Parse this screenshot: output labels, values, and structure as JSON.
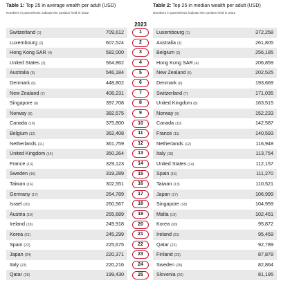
{
  "left_table": {
    "title_bold": "Table 1:",
    "title_rest": " Top 25 in average wealth per adult (USD)",
    "subtitle": "Numbers in parenthesis indicate the position held in 2022",
    "rows": [
      {
        "name": "Switzerland",
        "pos": "(1)",
        "value": "709,612"
      },
      {
        "name": "Luxembourg",
        "pos": "(2)",
        "value": "607,524"
      },
      {
        "name": "Hong Kong SAR",
        "pos": "(4)",
        "value": "582,000"
      },
      {
        "name": "United States",
        "pos": "(3)",
        "value": "564,862"
      },
      {
        "name": "Australia",
        "pos": "(5)",
        "value": "546,184"
      },
      {
        "name": "Denmark",
        "pos": "(6)",
        "value": "448,802"
      },
      {
        "name": "New Zealand",
        "pos": "(7)",
        "value": "408,231"
      },
      {
        "name": "Singapore",
        "pos": "(9)",
        "value": "397,708"
      },
      {
        "name": "Norway",
        "pos": "(8)",
        "value": "382,575"
      },
      {
        "name": "Canada",
        "pos": "(10)",
        "value": "375,800"
      },
      {
        "name": "Belgium",
        "pos": "(12)",
        "value": "362,408"
      },
      {
        "name": "Netherlands",
        "pos": "(11)",
        "value": "361,759"
      },
      {
        "name": "United Kingdom",
        "pos": "(14)",
        "value": "350,264"
      },
      {
        "name": "France",
        "pos": "(13)",
        "value": "329,123"
      },
      {
        "name": "Sweden",
        "pos": "(15)",
        "value": "319,289"
      },
      {
        "name": "Taiwan",
        "pos": "(16)",
        "value": "302,551"
      },
      {
        "name": "Germany",
        "pos": "(17)",
        "value": "264,789"
      },
      {
        "name": "Israel",
        "pos": "(20)",
        "value": "260,567"
      },
      {
        "name": "Austria",
        "pos": "(19)",
        "value": "255,689"
      },
      {
        "name": "Ireland",
        "pos": "(18)",
        "value": "249,918"
      },
      {
        "name": "Korea",
        "pos": "(21)",
        "value": "245,299"
      },
      {
        "name": "Spain",
        "pos": "(22)",
        "value": "225,675"
      },
      {
        "name": "Japan",
        "pos": "(24)",
        "value": "220,371"
      },
      {
        "name": "Italy",
        "pos": "(23)",
        "value": "220,216"
      },
      {
        "name": "Qatar",
        "pos": "(26)",
        "value": "199,430"
      }
    ]
  },
  "ranks": {
    "year": "2023",
    "items": [
      "1",
      "2",
      "3",
      "4",
      "5",
      "6",
      "7",
      "8",
      "9",
      "10",
      "11",
      "12",
      "13",
      "14",
      "15",
      "16",
      "17",
      "18",
      "19",
      "20",
      "21",
      "22",
      "23",
      "24",
      "25"
    ]
  },
  "right_table": {
    "title_bold": "Table 2:",
    "title_rest": " Top 25 in median wealth per adult (USD)",
    "subtitle": "Numbers in parenthesis indicate the position held in 2022",
    "rows": [
      {
        "name": "Luxembourg",
        "pos": "(1)",
        "value": "372,258"
      },
      {
        "name": "Australia",
        "pos": "(3)",
        "value": "261,805"
      },
      {
        "name": "Belgium",
        "pos": "(2)",
        "value": "256,185"
      },
      {
        "name": "Hong Kong SAR",
        "pos": "(4)",
        "value": "206,859"
      },
      {
        "name": "New Zealand",
        "pos": "(5)",
        "value": "202,525"
      },
      {
        "name": "Denmark",
        "pos": "(6)",
        "value": "193,669"
      },
      {
        "name": "Switzerland",
        "pos": "(7)",
        "value": "171,035"
      },
      {
        "name": "United Kingdom",
        "pos": "(8)",
        "value": "163,515"
      },
      {
        "name": "Norway",
        "pos": "(9)",
        "value": "152,233"
      },
      {
        "name": "Canada",
        "pos": "(10)",
        "value": "142,587"
      },
      {
        "name": "France",
        "pos": "(11)",
        "value": "140,593"
      },
      {
        "name": "Netherlands",
        "pos": "(12)",
        "value": "116,948"
      },
      {
        "name": "Italy",
        "pos": "(16)",
        "value": "113,754"
      },
      {
        "name": "United States",
        "pos": "(14)",
        "value": "112,157"
      },
      {
        "name": "Spain",
        "pos": "(15)",
        "value": "111,270"
      },
      {
        "name": "Taiwan",
        "pos": "(13)",
        "value": "110,521"
      },
      {
        "name": "Japan",
        "pos": "(17)",
        "value": "106,999"
      },
      {
        "name": "Singapore",
        "pos": "(18)",
        "value": "104,959"
      },
      {
        "name": "Malta",
        "pos": "(19)",
        "value": "102,451"
      },
      {
        "name": "Korea",
        "pos": "(20)",
        "value": "95,872"
      },
      {
        "name": "Ireland",
        "pos": "(21)",
        "value": "95,459"
      },
      {
        "name": "Qatar",
        "pos": "(22)",
        "value": "92,789"
      },
      {
        "name": "Finland",
        "pos": "(23)",
        "value": "87,878"
      },
      {
        "name": "Sweden",
        "pos": "(25)",
        "value": "82,864"
      },
      {
        "name": "Slovenia",
        "pos": "(26)",
        "value": "81,195"
      }
    ]
  }
}
